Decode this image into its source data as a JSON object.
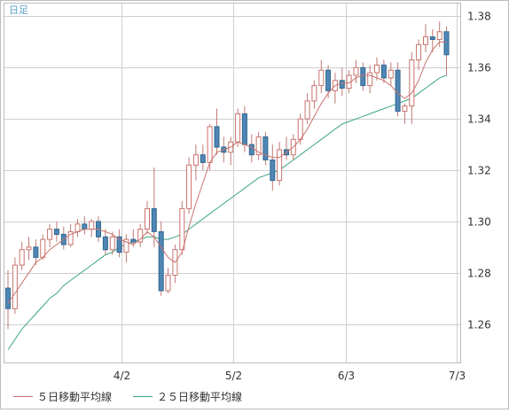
{
  "chart_data": {
    "type": "candlestick",
    "period_label": "日足",
    "x_tick_labels": [
      "4/2",
      "5/2",
      "6/3",
      "7/3"
    ],
    "y_ticks": [
      1.26,
      1.28,
      1.3,
      1.32,
      1.34,
      1.36,
      1.38
    ],
    "ylim": [
      1.245,
      1.385
    ],
    "grid": true,
    "legend": [
      {
        "key": "ma5",
        "label": "５日移動平均線",
        "color": "#c9736d"
      },
      {
        "key": "ma25",
        "label": "２５日移動平均線",
        "color": "#3aa57e"
      }
    ],
    "colors": {
      "up_body": "#ffffff",
      "up_border": "#c9736d",
      "down_body": "#4f86b4",
      "down_border": "#2f6790",
      "wick": "#c07a74",
      "grid": "#cfcfcf",
      "label": "#5a9fc7"
    },
    "candles": [
      [
        1.274,
        1.281,
        1.258,
        1.266
      ],
      [
        1.266,
        1.286,
        1.264,
        1.283
      ],
      [
        1.283,
        1.292,
        1.281,
        1.289
      ],
      [
        1.289,
        1.294,
        1.285,
        1.29
      ],
      [
        1.29,
        1.293,
        1.283,
        1.286
      ],
      [
        1.286,
        1.295,
        1.285,
        1.293
      ],
      [
        1.293,
        1.299,
        1.29,
        1.297
      ],
      [
        1.297,
        1.3,
        1.292,
        1.295
      ],
      [
        1.295,
        1.298,
        1.289,
        1.291
      ],
      [
        1.291,
        1.299,
        1.29,
        1.296
      ],
      [
        1.296,
        1.301,
        1.294,
        1.299
      ],
      [
        1.299,
        1.302,
        1.295,
        1.297
      ],
      [
        1.297,
        1.301,
        1.294,
        1.3
      ],
      [
        1.3,
        1.302,
        1.292,
        1.294
      ],
      [
        1.294,
        1.297,
        1.287,
        1.289
      ],
      [
        1.289,
        1.296,
        1.287,
        1.294
      ],
      [
        1.294,
        1.297,
        1.286,
        1.288
      ],
      [
        1.288,
        1.295,
        1.284,
        1.293
      ],
      [
        1.293,
        1.297,
        1.29,
        1.292
      ],
      [
        1.292,
        1.299,
        1.29,
        1.297
      ],
      [
        1.297,
        1.308,
        1.295,
        1.305
      ],
      [
        1.305,
        1.321,
        1.29,
        1.296
      ],
      [
        1.296,
        1.3,
        1.271,
        1.273
      ],
      [
        1.273,
        1.282,
        1.272,
        1.279
      ],
      [
        1.279,
        1.291,
        1.276,
        1.289
      ],
      [
        1.289,
        1.308,
        1.287,
        1.305
      ],
      [
        1.305,
        1.325,
        1.303,
        1.322
      ],
      [
        1.322,
        1.33,
        1.316,
        1.326
      ],
      [
        1.326,
        1.33,
        1.32,
        1.323
      ],
      [
        1.323,
        1.338,
        1.32,
        1.337
      ],
      [
        1.337,
        1.344,
        1.326,
        1.329
      ],
      [
        1.329,
        1.333,
        1.323,
        1.327
      ],
      [
        1.327,
        1.333,
        1.322,
        1.331
      ],
      [
        1.331,
        1.344,
        1.329,
        1.342
      ],
      [
        1.342,
        1.345,
        1.327,
        1.33
      ],
      [
        1.33,
        1.334,
        1.323,
        1.326
      ],
      [
        1.326,
        1.335,
        1.324,
        1.333
      ],
      [
        1.333,
        1.335,
        1.322,
        1.324
      ],
      [
        1.324,
        1.33,
        1.312,
        1.316
      ],
      [
        1.316,
        1.331,
        1.314,
        1.328
      ],
      [
        1.328,
        1.333,
        1.324,
        1.326
      ],
      [
        1.326,
        1.334,
        1.324,
        1.332
      ],
      [
        1.332,
        1.342,
        1.33,
        1.34
      ],
      [
        1.34,
        1.35,
        1.338,
        1.347
      ],
      [
        1.347,
        1.355,
        1.344,
        1.353
      ],
      [
        1.353,
        1.363,
        1.35,
        1.359
      ],
      [
        1.359,
        1.361,
        1.348,
        1.351
      ],
      [
        1.351,
        1.358,
        1.346,
        1.355
      ],
      [
        1.355,
        1.36,
        1.349,
        1.352
      ],
      [
        1.352,
        1.359,
        1.35,
        1.357
      ],
      [
        1.357,
        1.363,
        1.354,
        1.36
      ],
      [
        1.36,
        1.362,
        1.351,
        1.353
      ],
      [
        1.353,
        1.361,
        1.35,
        1.358
      ],
      [
        1.358,
        1.364,
        1.355,
        1.361
      ],
      [
        1.361,
        1.363,
        1.354,
        1.356
      ],
      [
        1.356,
        1.362,
        1.353,
        1.359
      ],
      [
        1.359,
        1.362,
        1.341,
        1.343
      ],
      [
        1.343,
        1.346,
        1.338,
        1.345
      ],
      [
        1.345,
        1.366,
        1.338,
        1.363
      ],
      [
        1.363,
        1.371,
        1.359,
        1.369
      ],
      [
        1.369,
        1.377,
        1.366,
        1.372
      ],
      [
        1.372,
        1.375,
        1.366,
        1.371
      ],
      [
        1.371,
        1.378,
        1.368,
        1.374
      ],
      [
        1.374,
        1.376,
        1.357,
        1.365
      ]
    ],
    "ma5": [
      1.268,
      1.272,
      1.276,
      1.28,
      1.284,
      1.286,
      1.289,
      1.291,
      1.293,
      1.295,
      1.296,
      1.297,
      1.297,
      1.297,
      1.296,
      1.295,
      1.293,
      1.292,
      1.291,
      1.293,
      1.296,
      1.294,
      1.29,
      1.286,
      1.284,
      1.288,
      1.298,
      1.307,
      1.315,
      1.323,
      1.327,
      1.328,
      1.329,
      1.331,
      1.33,
      1.329,
      1.327,
      1.326,
      1.325,
      1.325,
      1.327,
      1.329,
      1.332,
      1.336,
      1.341,
      1.346,
      1.35,
      1.353,
      1.354,
      1.354,
      1.356,
      1.357,
      1.357,
      1.356,
      1.355,
      1.353,
      1.35,
      1.348,
      1.35,
      1.355,
      1.362,
      1.367,
      1.37,
      1.37
    ],
    "ma25": [
      1.25,
      1.254,
      1.258,
      1.261,
      1.264,
      1.267,
      1.27,
      1.272,
      1.275,
      1.277,
      1.279,
      1.281,
      1.283,
      1.285,
      1.287,
      1.288,
      1.29,
      1.291,
      1.292,
      1.293,
      1.294,
      1.294,
      1.293,
      1.293,
      1.294,
      1.295,
      1.297,
      1.299,
      1.301,
      1.303,
      1.305,
      1.307,
      1.309,
      1.311,
      1.313,
      1.315,
      1.317,
      1.318,
      1.319,
      1.32,
      1.322,
      1.324,
      1.326,
      1.328,
      1.33,
      1.332,
      1.334,
      1.336,
      1.338,
      1.339,
      1.34,
      1.341,
      1.342,
      1.343,
      1.344,
      1.345,
      1.346,
      1.347,
      1.348,
      1.35,
      1.352,
      1.354,
      1.356,
      1.357
    ]
  }
}
